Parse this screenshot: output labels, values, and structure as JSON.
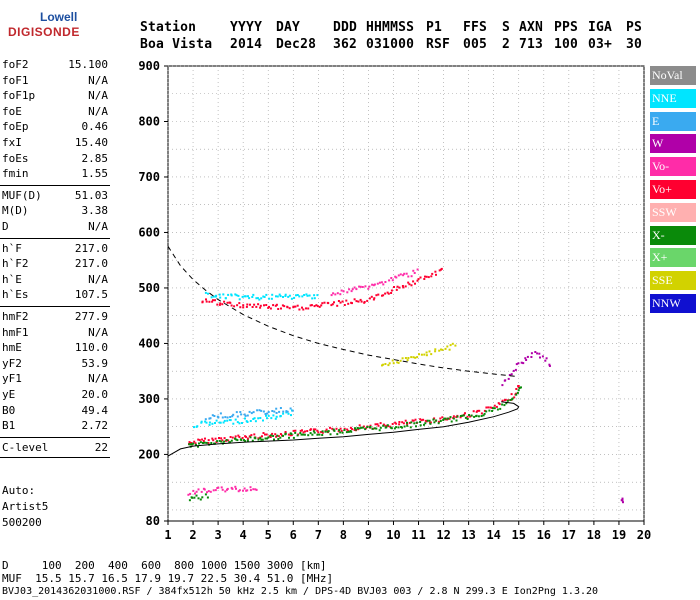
{
  "logo": {
    "line1": "Lowell",
    "line2": "DIGISONDE"
  },
  "header": {
    "labels": [
      "Station",
      "YYYY",
      "DAY",
      "DDD",
      "HHMMSS",
      "P1",
      "FFS",
      "S",
      "AXN",
      "PPS",
      "IGA",
      "PS"
    ],
    "values": [
      "Boa Vista",
      "2014",
      "Dec28",
      "362",
      "031000",
      "RSF",
      "005",
      "2",
      "713",
      "100",
      "03+",
      "30"
    ]
  },
  "params": [
    {
      "k": "foF2",
      "v": "15.100"
    },
    {
      "k": "foF1",
      "v": "N/A"
    },
    {
      "k": "foF1p",
      "v": "N/A"
    },
    {
      "k": "foE",
      "v": "N/A"
    },
    {
      "k": "foEp",
      "v": "0.46"
    },
    {
      "k": "fxI",
      "v": "15.40"
    },
    {
      "k": "foEs",
      "v": "2.85"
    },
    {
      "k": "fmin",
      "v": "1.55"
    },
    {
      "k": "MUF(D)",
      "v": "51.03"
    },
    {
      "k": "M(D)",
      "v": "3.38"
    },
    {
      "k": "D",
      "v": "N/A"
    },
    {
      "k": "h`F",
      "v": "217.0"
    },
    {
      "k": "h`F2",
      "v": "217.0"
    },
    {
      "k": "h`E",
      "v": "N/A"
    },
    {
      "k": "h`Es",
      "v": "107.5"
    },
    {
      "k": "hmF2",
      "v": "277.9"
    },
    {
      "k": "hmF1",
      "v": "N/A"
    },
    {
      "k": "hmE",
      "v": "110.0"
    },
    {
      "k": "yF2",
      "v": "53.9"
    },
    {
      "k": "yF1",
      "v": "N/A"
    },
    {
      "k": "yE",
      "v": "20.0"
    },
    {
      "k": "B0",
      "v": "49.4"
    },
    {
      "k": "B1",
      "v": "2.72"
    },
    {
      "k": "C-level",
      "v": "22"
    }
  ],
  "auto": {
    "line1": "Auto:",
    "line2": "Artist5",
    "line3": "500200"
  },
  "footer": {
    "d_line": "D     100  200  400  600  800 1000 1500 3000 [km]",
    "muf_line": "MUF  15.5 15.7 16.5 17.9 19.7 22.5 30.4 51.0 [MHz]",
    "info_line": "BVJ03_2014362031000.RSF / 384fx512h 50 kHz 2.5 km / DPS-4D BVJ03 003 / 2.8 N 299.3 E Ion2Png 1.3.20"
  },
  "legend": [
    {
      "label": "NoVal",
      "color": "#8c8c8c"
    },
    {
      "label": "NNE",
      "color": "#00e5ff"
    },
    {
      "label": "E",
      "color": "#3aaaf0"
    },
    {
      "label": "W",
      "color": "#b000a8"
    },
    {
      "label": "Vo-",
      "color": "#ff2ca8"
    },
    {
      "label": "Vo+",
      "color": "#ff0030"
    },
    {
      "label": "SSW",
      "color": "#ffb0b0"
    },
    {
      "label": "X-",
      "color": "#0a8a0a"
    },
    {
      "label": "X+",
      "color": "#6ad66a"
    },
    {
      "label": "SSE",
      "color": "#d2d200"
    },
    {
      "label": "NNW",
      "color": "#1010d0"
    }
  ],
  "chart_data": {
    "type": "scatter",
    "x_range": [
      1,
      20
    ],
    "y_range": [
      80,
      900
    ],
    "x_ticks": [
      "1",
      "2",
      "3",
      "4",
      "5",
      "6",
      "7",
      "8",
      "9",
      "10",
      "11",
      "12",
      "13",
      "14",
      "15",
      "16",
      "17",
      "18",
      "19",
      "20"
    ],
    "y_ticks": [
      "80",
      "200",
      "300",
      "400",
      "500",
      "600",
      "700",
      "800",
      "900"
    ],
    "x_tick_values": [
      1,
      2,
      3,
      4,
      5,
      6,
      7,
      8,
      9,
      10,
      11,
      12,
      13,
      14,
      15,
      16,
      17,
      18,
      19,
      20
    ],
    "y_tick_values": [
      80,
      200,
      300,
      400,
      500,
      600,
      700,
      800,
      900
    ],
    "grid": true,
    "profile_line": [
      [
        1.0,
        197
      ],
      [
        1.5,
        210
      ],
      [
        2,
        215
      ],
      [
        3,
        219
      ],
      [
        4,
        222
      ],
      [
        5,
        224
      ],
      [
        6,
        226
      ],
      [
        7,
        229
      ],
      [
        8,
        232
      ],
      [
        9,
        236
      ],
      [
        10,
        240
      ],
      [
        11,
        245
      ],
      [
        12,
        250
      ],
      [
        13,
        258
      ],
      [
        14,
        268
      ],
      [
        14.6,
        276
      ],
      [
        14.95,
        282
      ],
      [
        15.0,
        286
      ],
      [
        14.8,
        292
      ],
      [
        14.3,
        295
      ]
    ],
    "muf_curve": [
      [
        1.0,
        575
      ],
      [
        1.5,
        540
      ],
      [
        2,
        515
      ],
      [
        2.5,
        496
      ],
      [
        3,
        479
      ],
      [
        4,
        452
      ],
      [
        5,
        431
      ],
      [
        6,
        414
      ],
      [
        7,
        400
      ],
      [
        8,
        389
      ],
      [
        9,
        379
      ],
      [
        10,
        371
      ],
      [
        11,
        363
      ],
      [
        12,
        356
      ],
      [
        13,
        350
      ],
      [
        14,
        345
      ],
      [
        15,
        340
      ]
    ],
    "traces": [
      {
        "name": "Vo+",
        "pts": [
          [
            1.8,
            221
          ],
          [
            2,
            224
          ],
          [
            3,
            229
          ],
          [
            4,
            233
          ],
          [
            5,
            237
          ],
          [
            6,
            240
          ],
          [
            7,
            244
          ],
          [
            8,
            248
          ],
          [
            9,
            252
          ],
          [
            10,
            256
          ],
          [
            11,
            261
          ],
          [
            12,
            266
          ],
          [
            13,
            274
          ],
          [
            13.5,
            280
          ],
          [
            14,
            287
          ],
          [
            14.4,
            296
          ],
          [
            14.7,
            306
          ],
          [
            14.9,
            318
          ],
          [
            15,
            330
          ]
        ]
      },
      {
        "name": "X-",
        "pts": [
          [
            1.8,
            217
          ],
          [
            2,
            219
          ],
          [
            3,
            224
          ],
          [
            4,
            228
          ],
          [
            5,
            232
          ],
          [
            6,
            236
          ],
          [
            7,
            240
          ],
          [
            8,
            244
          ],
          [
            9,
            248
          ],
          [
            10,
            252
          ],
          [
            11,
            257
          ],
          [
            12,
            263
          ],
          [
            13,
            270
          ],
          [
            13.7,
            278
          ],
          [
            14.2,
            286
          ],
          [
            14.6,
            298
          ],
          [
            14.9,
            312
          ],
          [
            15.1,
            325
          ]
        ]
      },
      {
        "name": "NNE",
        "pts": [
          [
            2,
            255
          ],
          [
            2.5,
            257
          ],
          [
            3,
            259
          ],
          [
            3.5,
            261
          ],
          [
            4,
            263
          ],
          [
            4.5,
            265
          ],
          [
            5,
            268
          ],
          [
            5.5,
            272
          ],
          [
            6,
            278
          ]
        ]
      },
      {
        "name": "E",
        "pts": [
          [
            2.5,
            269
          ],
          [
            3,
            271
          ],
          [
            3.5,
            273
          ],
          [
            4,
            275
          ],
          [
            4.5,
            277
          ],
          [
            5,
            279
          ],
          [
            5.5,
            281
          ],
          [
            6,
            283
          ]
        ]
      },
      {
        "name": "Vo+",
        "pts": [
          [
            2.3,
            480
          ],
          [
            3,
            474
          ],
          [
            4,
            470
          ],
          [
            5,
            468
          ],
          [
            6,
            465
          ],
          [
            7,
            470
          ],
          [
            8,
            475
          ],
          [
            9,
            480
          ],
          [
            10,
            500
          ],
          [
            11,
            515
          ],
          [
            12,
            535
          ]
        ]
      },
      {
        "name": "NNE",
        "pts": [
          [
            2.5,
            490
          ],
          [
            3,
            487
          ],
          [
            4,
            485
          ],
          [
            5,
            485
          ],
          [
            6,
            486
          ],
          [
            7,
            488
          ]
        ]
      },
      {
        "name": "Vo-",
        "pts": [
          [
            7.5,
            490
          ],
          [
            8,
            495
          ],
          [
            8.5,
            500
          ],
          [
            9,
            505
          ],
          [
            9.5,
            510
          ],
          [
            10,
            520
          ],
          [
            10.5,
            525
          ],
          [
            11,
            532
          ]
        ]
      },
      {
        "name": "SSE",
        "pts": [
          [
            9.5,
            365
          ],
          [
            10,
            368
          ],
          [
            10.5,
            372
          ],
          [
            11,
            378
          ],
          [
            11.5,
            385
          ],
          [
            12,
            392
          ],
          [
            12.5,
            400
          ]
        ]
      },
      {
        "name": "W",
        "pts": [
          [
            14.3,
            330
          ],
          [
            14.6,
            345
          ],
          [
            14.9,
            360
          ],
          [
            15.2,
            372
          ],
          [
            15.6,
            385
          ],
          [
            16,
            375
          ],
          [
            16.3,
            360
          ]
        ]
      },
      {
        "name": "Vo-",
        "pts": [
          [
            1.8,
            130
          ],
          [
            2.2,
            135
          ],
          [
            3,
            138
          ],
          [
            4,
            140
          ],
          [
            4.6,
            142
          ]
        ]
      },
      {
        "name": "X-",
        "pts": [
          [
            1.8,
            122
          ],
          [
            2.2,
            124
          ],
          [
            2.6,
            126
          ]
        ]
      },
      {
        "name": "W",
        "pts": [
          [
            19.1,
            120
          ],
          [
            19.1,
            126
          ]
        ]
      }
    ]
  }
}
